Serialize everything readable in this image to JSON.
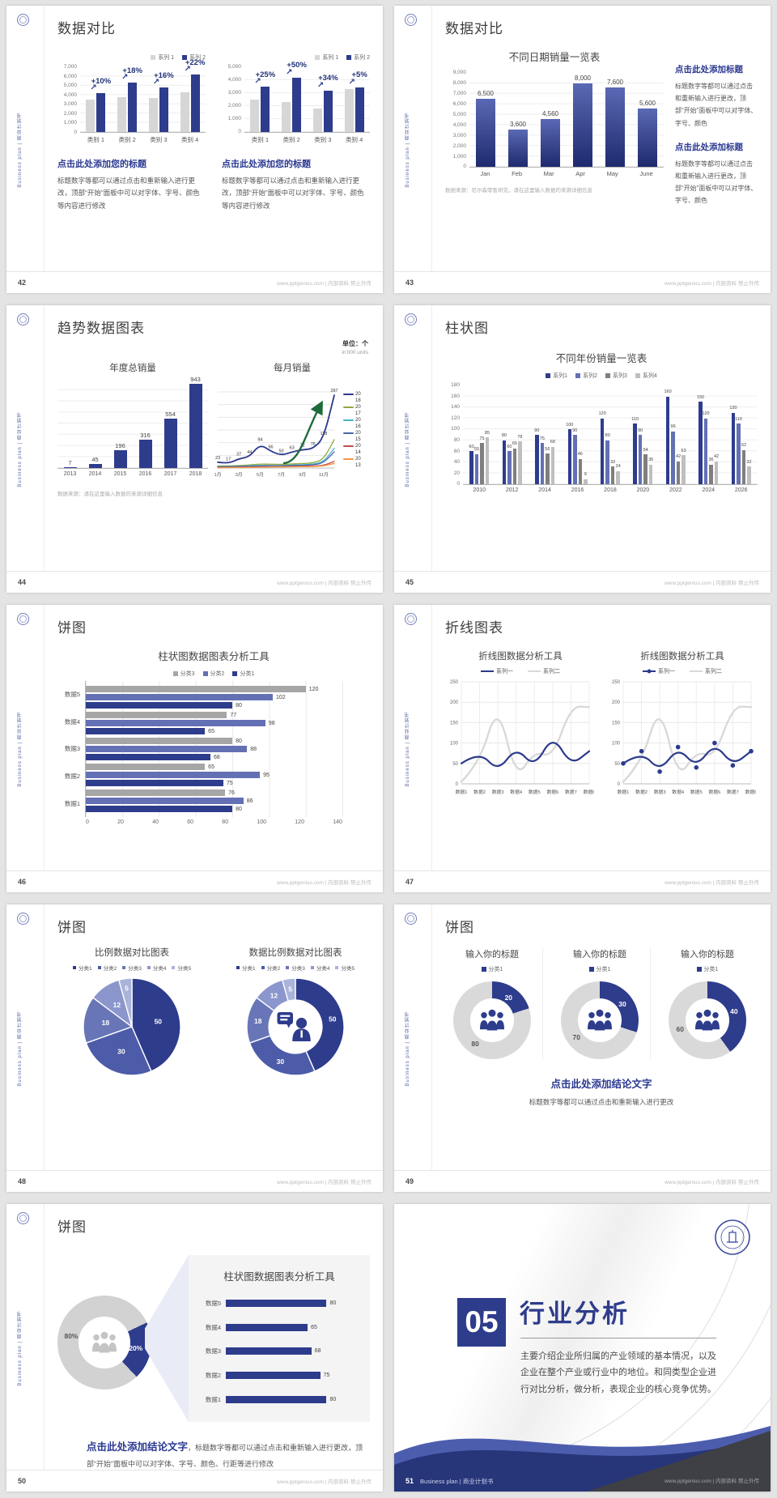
{
  "common": {
    "sidebar_text": "Business plan | 商业计划书",
    "footer_site": "www.pptgenius.com | 内部资料 禁止外传",
    "accent_color": "#2e3c8c"
  },
  "slides": {
    "s42": {
      "page": "42",
      "title": "数据对比",
      "block_heading": "点击此处添加您的标题",
      "block_body": "标题数字等都可以通过点击和重新输入进行更改，顶部“开始”面板中可以对字体、字号、颜色等内容进行修改"
    },
    "s43": {
      "page": "43",
      "title": "数据对比",
      "note": "数据来源：尼尔森零售研究，请在这里输入数据的来源详细信息",
      "block_heading": "点击此处添加标题",
      "block_body": "标题数字等都可以通过点击和重新输入进行更改，顶部“开始”面板中可以对字体、字号、颜色"
    },
    "s44": {
      "page": "44",
      "title": "趋势数据图表",
      "unit_main": "单位：个",
      "unit_sub": "in'000 units",
      "note": "数据来源：请在这里输入数据的来源详细信息"
    },
    "s45": {
      "page": "45",
      "title": "柱状图"
    },
    "s46": {
      "page": "46",
      "title": "饼图"
    },
    "s47": {
      "page": "47",
      "title": "折线图表"
    },
    "s48": {
      "page": "48",
      "title": "饼图"
    },
    "s49": {
      "page": "49",
      "title": "饼图",
      "conclusion_heading": "点击此处添加结论文字",
      "conclusion_body": "标题数字等都可以通过点击和重新输入进行更改"
    },
    "s50": {
      "page": "50",
      "title": "饼图",
      "conclusion_heading": "点击此处添加结论文字",
      "conclusion_body": "，标题数字等都可以通过点击和重新输入进行更改，顶部“开始”面板中可以对字体、字号、颜色、行距等进行修改"
    },
    "s51": {
      "page": "51",
      "number": "05",
      "title": "行业分析",
      "body": "主要介绍企业所归属的产业领域的基本情况，以及企业在整个产业或行业中的地位。和同类型企业进行对比分析，做分析，表现企业的核心竞争优势。",
      "footer_label": "Business plan | 商业计划书"
    }
  },
  "chart_data": [
    {
      "id": "s42a",
      "type": "bar",
      "legend": [
        "系列 1",
        "系列 2"
      ],
      "categories": [
        "类别 1",
        "类别 2",
        "类别 3",
        "类别 4"
      ],
      "series": [
        {
          "name": "系列 1",
          "color": "#d6d6d6",
          "values": [
            3500,
            3800,
            3700,
            4300
          ]
        },
        {
          "name": "系列 2",
          "color": "#2e3c8c",
          "values": [
            4200,
            5300,
            4800,
            6200
          ]
        }
      ],
      "pct_labels": [
        "+10%",
        "+18%",
        "+16%",
        "+22%"
      ],
      "ylim": [
        0,
        7000
      ],
      "yticks": [
        "7,000",
        "6,000",
        "5,000",
        "4,000",
        "3,000",
        "2,000",
        "1,000",
        "0"
      ]
    },
    {
      "id": "s42b",
      "type": "bar",
      "legend": [
        "系列 1",
        "系列 2"
      ],
      "categories": [
        "类别 1",
        "类别 2",
        "类别 3",
        "类别 4"
      ],
      "series": [
        {
          "name": "系列 1",
          "color": "#d6d6d6",
          "values": [
            2500,
            2300,
            1800,
            3300
          ]
        },
        {
          "name": "系列 2",
          "color": "#2e3c8c",
          "values": [
            3500,
            4200,
            3200,
            3450
          ]
        }
      ],
      "pct_labels": [
        "+25%",
        "+50%",
        "+34%",
        "+5%"
      ],
      "ylim": [
        0,
        5000
      ],
      "yticks": [
        "5,000",
        "4,000",
        "3,000",
        "2,000",
        "1,000",
        "0"
      ]
    },
    {
      "id": "s43",
      "type": "bar",
      "title": "不同日期销量一览表",
      "categories": [
        "Jan",
        "Feb",
        "Mar",
        "Apr",
        "May",
        "June"
      ],
      "values": [
        6500,
        3600,
        4560,
        8000,
        7600,
        5600
      ],
      "value_labels": [
        "6,500",
        "3,600",
        "4,560",
        "8,000",
        "7,600",
        "5,600"
      ],
      "ylim": [
        0,
        9000
      ],
      "yticks": [
        "9,000",
        "8,000",
        "7,000",
        "6,000",
        "5,000",
        "4,000",
        "3,000",
        "2,000",
        "1,000",
        "0"
      ]
    },
    {
      "id": "s44a",
      "type": "bar",
      "title": "年度总销量",
      "categories": [
        "2013",
        "2014",
        "2015",
        "2016",
        "2017",
        "2018"
      ],
      "values": [
        7,
        45,
        196,
        316,
        554,
        943
      ],
      "color": "#2e3c8c"
    },
    {
      "id": "s44b",
      "type": "line",
      "title": "每月销量",
      "x_labels": [
        "1月",
        "3月",
        "5月",
        "7月",
        "9月",
        "11月"
      ],
      "main_series": {
        "color": "#2b3a8c",
        "values": [
          23,
          17,
          37,
          44,
          94,
          66,
          50,
          63,
          72,
          76,
          118,
          287
        ]
      },
      "support_series": [
        {
          "color": "#8faa3c",
          "values": [
            8,
            8,
            10,
            12,
            16,
            15,
            14,
            16,
            18,
            20,
            34,
            112
          ]
        },
        {
          "color": "#45b3c9",
          "values": [
            5,
            6,
            7,
            9,
            11,
            10,
            10,
            12,
            13,
            15,
            24,
            78
          ]
        },
        {
          "color": "#4a66ac",
          "values": [
            4,
            5,
            6,
            7,
            9,
            9,
            9,
            10,
            11,
            12,
            20,
            64
          ]
        },
        {
          "color": "#c0504d",
          "values": [
            2,
            3,
            3,
            4,
            5,
            5,
            5,
            6,
            7,
            8,
            10,
            26
          ]
        },
        {
          "color": "#f79646",
          "values": [
            1,
            2,
            2,
            3,
            3,
            4,
            4,
            5,
            5,
            6,
            8,
            18
          ]
        }
      ],
      "legend_values": [
        "20",
        "18",
        "20",
        "17",
        "20",
        "16",
        "20",
        "15",
        "20",
        "14",
        "20",
        "13"
      ],
      "arrow_color": "#1e6b3a"
    },
    {
      "id": "s45",
      "type": "bar",
      "title": "不同年份销量一览表",
      "legend": [
        "系列1",
        "系列2",
        "系列3",
        "系列4"
      ],
      "categories": [
        "2010",
        "2012",
        "2014",
        "2016",
        "2018",
        "2020",
        "2022",
        "2024",
        "2026"
      ],
      "series": [
        {
          "name": "系列1",
          "color": "#2e3c8c",
          "values": [
            60,
            80,
            90,
            100,
            120,
            110,
            160,
            150,
            130
          ]
        },
        {
          "name": "系列2",
          "color": "#6470b4",
          "values": [
            55,
            60,
            75,
            90,
            80,
            90,
            96,
            120,
            110
          ]
        },
        {
          "name": "系列3",
          "color": "#7f7f7f",
          "values": [
            75,
            65,
            56,
            46,
            32,
            54,
            42,
            36,
            62
          ]
        },
        {
          "name": "系列4",
          "color": "#bfbfbf",
          "values": [
            85,
            78,
            68,
            9,
            24,
            36,
            53,
            42,
            32
          ]
        }
      ],
      "ylim": [
        0,
        180
      ],
      "yticks": [
        "180",
        "160",
        "140",
        "120",
        "100",
        "80",
        "60",
        "40",
        "20",
        "0"
      ]
    },
    {
      "id": "s46",
      "type": "bar-horizontal",
      "title": "柱状图数据图表分析工具",
      "legend": [
        "分类3",
        "分类2",
        "分类1"
      ],
      "categories": [
        "数据5",
        "数据4",
        "数据3",
        "数据2",
        "数据1"
      ],
      "series": [
        {
          "name": "分类3",
          "color": "#a6a6a6",
          "values": [
            120,
            77,
            80,
            65,
            76
          ]
        },
        {
          "name": "分类2",
          "color": "#6470b4",
          "values": [
            102,
            98,
            88,
            95,
            86
          ]
        },
        {
          "name": "分类1",
          "color": "#2e3c8c",
          "values": [
            80,
            65,
            68,
            75,
            80
          ]
        }
      ],
      "xlim": [
        0,
        140
      ],
      "xticks": [
        "0",
        "20",
        "40",
        "60",
        "80",
        "100",
        "120",
        "140"
      ]
    },
    {
      "id": "s47a",
      "type": "line",
      "title": "折线图数据分析工具",
      "legend": [
        "系列一",
        "系列二"
      ],
      "x_labels": [
        "数据1",
        "数据2",
        "数据3",
        "数据4",
        "数据5",
        "数据6",
        "数据7",
        "数据8"
      ],
      "series": [
        {
          "name": "系列一",
          "color": "#2b3a8c",
          "values": [
            50,
            80,
            30,
            90,
            40,
            120,
            45,
            80
          ]
        },
        {
          "name": "系列二",
          "color": "#d9d9d9",
          "values": [
            5,
            50,
            200,
            10,
            80,
            65,
            190,
            188
          ]
        }
      ],
      "ylim": [
        0,
        250
      ],
      "yticks": [
        "250",
        "200",
        "150",
        "100",
        "50",
        "0"
      ]
    },
    {
      "id": "s47b",
      "type": "line",
      "title": "折线图数据分析工具",
      "legend": [
        "系列一",
        "系列二"
      ],
      "x_labels": [
        "数据1",
        "数据2",
        "数据3",
        "数据4",
        "数据5",
        "数据6",
        "数据7",
        "数据8"
      ],
      "series": [
        {
          "name": "系列一",
          "color": "#2b3a8c",
          "values": [
            50,
            80,
            30,
            90,
            40,
            100,
            45,
            80
          ],
          "markers": true
        },
        {
          "name": "系列二",
          "color": "#d9d9d9",
          "values": [
            5,
            50,
            200,
            10,
            80,
            65,
            190,
            188
          ]
        }
      ],
      "ylim": [
        0,
        250
      ],
      "yticks": [
        "250",
        "200",
        "150",
        "100",
        "50",
        "0"
      ]
    },
    {
      "id": "s48a",
      "type": "pie",
      "title": "比例数据对比图表",
      "legend": [
        "分类1",
        "分类2",
        "分类3",
        "分类4",
        "分类5"
      ],
      "values": [
        50,
        30,
        18,
        12,
        5
      ],
      "colors": [
        "#2e3c8c",
        "#4d5ca8",
        "#6876b8",
        "#8b96cc",
        "#aab3da"
      ]
    },
    {
      "id": "s48b",
      "type": "donut",
      "title": "数据比例数据对比图表",
      "legend": [
        "分类1",
        "分类2",
        "分类3",
        "分类4",
        "分类5"
      ],
      "values": [
        50,
        30,
        18,
        12,
        5
      ],
      "colors": [
        "#2e3c8c",
        "#4d5ca8",
        "#6876b8",
        "#8b96cc",
        "#aab3da"
      ],
      "center_icon": "person-message-icon"
    },
    {
      "id": "s49",
      "type": "donut-set",
      "items": [
        {
          "title": "输入你的标题",
          "legend": [
            "分类1"
          ],
          "values": [
            20,
            80
          ]
        },
        {
          "title": "输入你的标题",
          "legend": [
            "分类1"
          ],
          "values": [
            30,
            70
          ]
        },
        {
          "title": "输入你的标题",
          "legend": [
            "分类1"
          ],
          "values": [
            40,
            60
          ]
        }
      ],
      "blue": "#2e3c8c",
      "gray": "#d9d9d9",
      "center_icon": "team-icon"
    },
    {
      "id": "s50a",
      "type": "donut",
      "values": [
        20,
        80
      ],
      "value_labels": [
        "20%",
        "80%"
      ],
      "blue": "#2e3c8c",
      "gray": "#d2d2d2",
      "center_icon": "team-icon"
    },
    {
      "id": "s50b",
      "type": "bar-horizontal",
      "title": "柱状图数据图表分析工具",
      "categories": [
        "数据5",
        "数据4",
        "数据3",
        "数据2",
        "数据1"
      ],
      "series": [
        {
          "name": "数据",
          "color": "#2e3c8c",
          "values": [
            80,
            65,
            68,
            75,
            80
          ]
        }
      ],
      "xlim": [
        0,
        90
      ]
    }
  ]
}
